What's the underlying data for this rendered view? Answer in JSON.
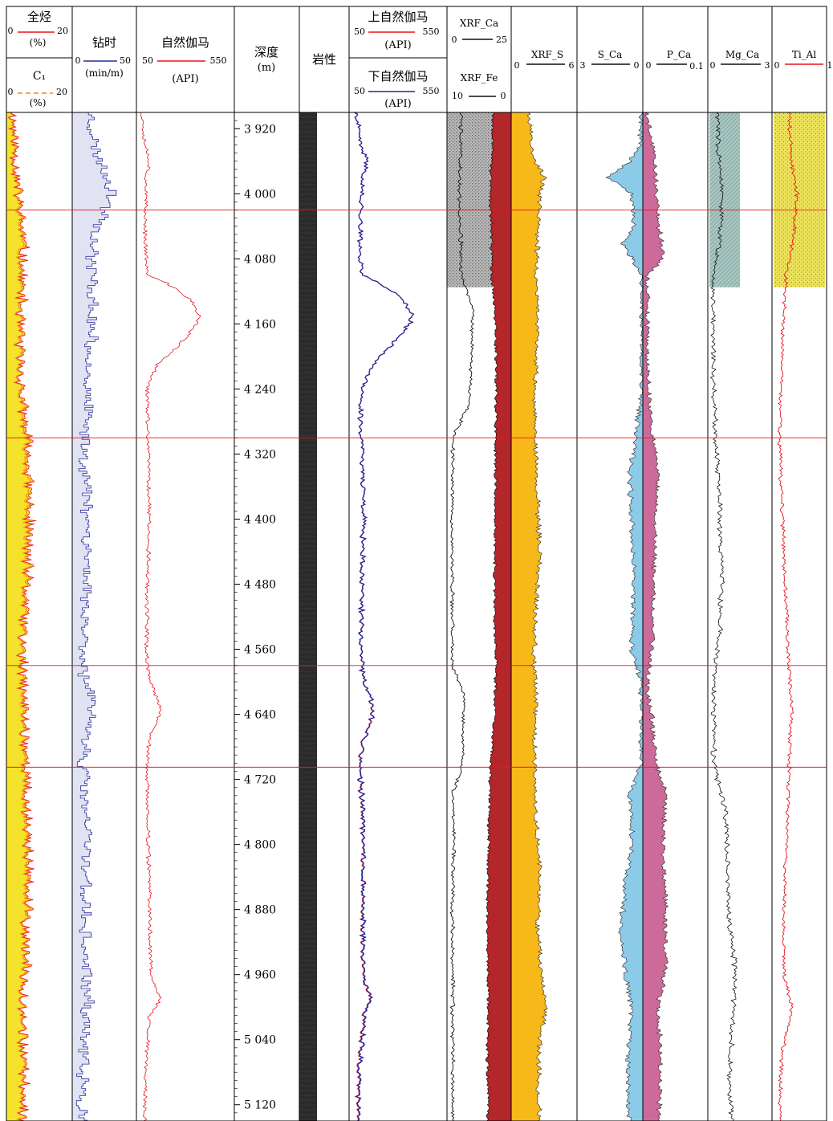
{
  "chart_data": {
    "type": "line",
    "depth": {
      "title": "深度",
      "unit": "(m)",
      "range": [
        3900,
        5140
      ],
      "ticks": [
        3920,
        4000,
        4080,
        4160,
        4240,
        4320,
        4400,
        4480,
        4560,
        4640,
        4720,
        4800,
        4880,
        4960,
        5040,
        5120
      ],
      "tick_labels": [
        "3 920",
        "4 000",
        "4 080",
        "4 160",
        "4 240",
        "4 320",
        "4 400",
        "4 480",
        "4 560",
        "4 640",
        "4 720",
        "4 800",
        "4 880",
        "4 960",
        "5 040",
        "5 120"
      ]
    },
    "boundaries": [
      4020,
      4300,
      4580,
      4705
    ],
    "colors": {
      "gas_fill": "#f5e22a",
      "total_gas": "#e8141c",
      "c1": "#f08a1c",
      "drill": "#2a2f9c",
      "gamma": "#e8141c",
      "gamma_upper": "#e8141c",
      "gamma_lower": "#22249a",
      "xrf_fe_fill": "#b3262a",
      "xrf_ca_line": "#111111",
      "xrf_s_fill": "#f7b91a",
      "s_ca_fill": "#8ccbe8",
      "p_ca_fill": "#cc6b9a",
      "mg_ca_line": "#111111",
      "ti_al_line": "#e8141c",
      "ti_al_fill": "#ede35a",
      "mg_ca_fill": "#a9c7c2",
      "lith_fill": "#2b2b2b",
      "boundary_line": "#e8141c"
    },
    "tracks": [
      {
        "key": "gas",
        "series": [
          {
            "name": "全烃",
            "min": "0",
            "max": "20",
            "unit": "(%)",
            "color": "#e8141c",
            "style": "solid"
          },
          {
            "name": "C₁",
            "min": "0",
            "max": "20",
            "unit": "(%)",
            "color": "#f08a1c",
            "style": "dashed"
          }
        ]
      },
      {
        "key": "drill",
        "series": [
          {
            "name": "钻时",
            "min": "0",
            "max": "50",
            "unit": "(min/m)",
            "color": "#2a2f9c",
            "style": "solid"
          }
        ]
      },
      {
        "key": "gamma",
        "series": [
          {
            "name": "自然伽马",
            "min": "50",
            "max": "550",
            "unit": "(API)",
            "color": "#e8141c",
            "style": "solid"
          }
        ]
      },
      {
        "key": "depth"
      },
      {
        "key": "lith",
        "title": "岩性"
      },
      {
        "key": "gamma2",
        "series": [
          {
            "name": "上自然伽马",
            "min": "50",
            "max": "550",
            "unit": "(API)",
            "color": "#e8141c",
            "style": "solid"
          },
          {
            "name": "下自然伽马",
            "min": "50",
            "max": "550",
            "unit": "(API)",
            "color": "#22249a",
            "style": "solid"
          }
        ]
      },
      {
        "key": "xrf_ca_fe",
        "series": [
          {
            "name": "XRF_Ca",
            "min": "0",
            "max": "25",
            "color": "#111111",
            "style": "solid"
          },
          {
            "name": "XRF_Fe",
            "min": "10",
            "max": "0",
            "color": "#111111",
            "style": "solid"
          }
        ]
      },
      {
        "key": "xrf_s",
        "series": [
          {
            "name": "XRF_S",
            "min": "0",
            "max": "6",
            "color": "#111111",
            "style": "solid"
          }
        ]
      },
      {
        "key": "s_ca",
        "series": [
          {
            "name": "S_Ca",
            "min": "3",
            "max": "0",
            "color": "#111111",
            "style": "solid"
          }
        ]
      },
      {
        "key": "p_ca",
        "series": [
          {
            "name": "P_Ca",
            "min": "0",
            "max": "0.1",
            "color": "#111111",
            "style": "solid"
          }
        ]
      },
      {
        "key": "mg_ca",
        "series": [
          {
            "name": "Mg_Ca",
            "min": "0",
            "max": "3",
            "color": "#111111",
            "style": "solid"
          }
        ]
      },
      {
        "key": "ti_al",
        "series": [
          {
            "name": "Ti_Al",
            "min": "0",
            "max": "1",
            "color": "#e8141c",
            "style": "solid"
          }
        ]
      }
    ],
    "legend_notes": {
      "xrf_s_labels": [
        "0",
        "6"
      ],
      "ti_al_labels": [
        "0",
        "1"
      ]
    },
    "profiles": {
      "gas_total_percent": [
        [
          3900,
          1.6
        ],
        [
          3930,
          2.2
        ],
        [
          3960,
          2.6
        ],
        [
          4000,
          3.4
        ],
        [
          4030,
          4.2
        ],
        [
          4060,
          5.0
        ],
        [
          4100,
          4.6
        ],
        [
          4160,
          4.0
        ],
        [
          4200,
          3.9
        ],
        [
          4240,
          4.3
        ],
        [
          4280,
          5.2
        ],
        [
          4300,
          6.2
        ],
        [
          4340,
          6.6
        ],
        [
          4400,
          6.9
        ],
        [
          4450,
          6.4
        ],
        [
          4500,
          5.8
        ],
        [
          4550,
          4.8
        ],
        [
          4580,
          4.6
        ],
        [
          4620,
          5.2
        ],
        [
          4660,
          5.6
        ],
        [
          4700,
          6.0
        ],
        [
          4740,
          5.8
        ],
        [
          4800,
          6.6
        ],
        [
          4850,
          6.4
        ],
        [
          4900,
          6.0
        ],
        [
          4950,
          5.6
        ],
        [
          5000,
          5.2
        ],
        [
          5050,
          4.9
        ],
        [
          5100,
          5.2
        ],
        [
          5140,
          5.0
        ]
      ],
      "drill_time": [
        [
          3900,
          14
        ],
        [
          3940,
          17
        ],
        [
          3980,
          28
        ],
        [
          4000,
          32
        ],
        [
          4020,
          26
        ],
        [
          4060,
          16
        ],
        [
          4100,
          15
        ],
        [
          4150,
          15
        ],
        [
          4200,
          13
        ],
        [
          4250,
          11
        ],
        [
          4300,
          9
        ],
        [
          4350,
          10
        ],
        [
          4400,
          12
        ],
        [
          4450,
          11
        ],
        [
          4500,
          10
        ],
        [
          4550,
          9
        ],
        [
          4600,
          9
        ],
        [
          4620,
          14
        ],
        [
          4660,
          12
        ],
        [
          4700,
          8
        ],
        [
          4750,
          9
        ],
        [
          4800,
          11
        ],
        [
          4850,
          10
        ],
        [
          4900,
          9
        ],
        [
          4950,
          10
        ],
        [
          5000,
          11
        ],
        [
          5050,
          8
        ],
        [
          5100,
          7
        ],
        [
          5140,
          7
        ]
      ],
      "gamma_api": [
        [
          3900,
          70
        ],
        [
          3940,
          90
        ],
        [
          3960,
          110
        ],
        [
          3980,
          95
        ],
        [
          4000,
          90
        ],
        [
          4040,
          88
        ],
        [
          4080,
          92
        ],
        [
          4100,
          100
        ],
        [
          4110,
          200
        ],
        [
          4130,
          330
        ],
        [
          4150,
          370
        ],
        [
          4160,
          360
        ],
        [
          4175,
          310
        ],
        [
          4190,
          250
        ],
        [
          4210,
          150
        ],
        [
          4240,
          100
        ],
        [
          4280,
          100
        ],
        [
          4320,
          105
        ],
        [
          4400,
          110
        ],
        [
          4480,
          100
        ],
        [
          4560,
          95
        ],
        [
          4600,
          110
        ],
        [
          4630,
          170
        ],
        [
          4650,
          150
        ],
        [
          4670,
          110
        ],
        [
          4700,
          95
        ],
        [
          4800,
          105
        ],
        [
          4880,
          110
        ],
        [
          4960,
          120
        ],
        [
          4990,
          170
        ],
        [
          5010,
          110
        ],
        [
          5080,
          90
        ],
        [
          5140,
          85
        ]
      ],
      "gamma_split_api": [
        [
          3900,
          70
        ],
        [
          3940,
          95
        ],
        [
          3960,
          130
        ],
        [
          3980,
          110
        ],
        [
          4000,
          100
        ],
        [
          4040,
          95
        ],
        [
          4080,
          95
        ],
        [
          4100,
          105
        ],
        [
          4110,
          200
        ],
        [
          4130,
          330
        ],
        [
          4150,
          380
        ],
        [
          4160,
          360
        ],
        [
          4175,
          310
        ],
        [
          4190,
          250
        ],
        [
          4210,
          160
        ],
        [
          4240,
          100
        ],
        [
          4280,
          95
        ],
        [
          4320,
          105
        ],
        [
          4400,
          110
        ],
        [
          4480,
          100
        ],
        [
          4560,
          95
        ],
        [
          4600,
          110
        ],
        [
          4630,
          160
        ],
        [
          4650,
          150
        ],
        [
          4670,
          110
        ],
        [
          4700,
          90
        ],
        [
          4800,
          110
        ],
        [
          4880,
          105
        ],
        [
          4960,
          105
        ],
        [
          4990,
          150
        ],
        [
          5010,
          110
        ],
        [
          5080,
          85
        ],
        [
          5140,
          80
        ]
      ],
      "xrf_fe": [
        [
          3900,
          2.9
        ],
        [
          3960,
          3.1
        ],
        [
          4000,
          3.3
        ],
        [
          4060,
          3.0
        ],
        [
          4100,
          3.0
        ],
        [
          4160,
          2.4
        ],
        [
          4240,
          2.4
        ],
        [
          4300,
          2.4
        ],
        [
          4360,
          2.5
        ],
        [
          4440,
          2.6
        ],
        [
          4520,
          2.6
        ],
        [
          4580,
          2.4
        ],
        [
          4640,
          2.6
        ],
        [
          4700,
          3.2
        ],
        [
          4780,
          3.5
        ],
        [
          4860,
          3.7
        ],
        [
          4920,
          3.8
        ],
        [
          4980,
          3.6
        ],
        [
          5060,
          3.7
        ],
        [
          5140,
          3.6
        ]
      ],
      "xrf_ca": [
        [
          3900,
          5.5
        ],
        [
          3960,
          5.0
        ],
        [
          4000,
          4.5
        ],
        [
          4040,
          5.0
        ],
        [
          4100,
          5.5
        ],
        [
          4140,
          10
        ],
        [
          4200,
          9.5
        ],
        [
          4260,
          8.5
        ],
        [
          4300,
          2
        ],
        [
          4360,
          1.8
        ],
        [
          4440,
          1.8
        ],
        [
          4520,
          1.8
        ],
        [
          4580,
          2.0
        ],
        [
          4620,
          6.5
        ],
        [
          4700,
          6.0
        ],
        [
          4740,
          1.8
        ],
        [
          4800,
          2.5
        ],
        [
          4880,
          1.8
        ],
        [
          4960,
          2.0
        ],
        [
          5040,
          2.0
        ],
        [
          5140,
          2.0
        ]
      ],
      "xrf_s": [
        [
          3900,
          1.6
        ],
        [
          3940,
          1.8
        ],
        [
          3960,
          2.2
        ],
        [
          3980,
          3.0
        ],
        [
          4000,
          2.6
        ],
        [
          4060,
          2.4
        ],
        [
          4100,
          2.2
        ],
        [
          4160,
          2.4
        ],
        [
          4240,
          2.1
        ],
        [
          4300,
          2.2
        ],
        [
          4360,
          2.3
        ],
        [
          4440,
          2.6
        ],
        [
          4520,
          2.2
        ],
        [
          4580,
          2.0
        ],
        [
          4620,
          2.2
        ],
        [
          4700,
          2.0
        ],
        [
          4760,
          2.2
        ],
        [
          4840,
          2.6
        ],
        [
          4900,
          2.4
        ],
        [
          4960,
          2.8
        ],
        [
          5000,
          3.2
        ],
        [
          5040,
          2.6
        ],
        [
          5100,
          2.4
        ],
        [
          5140,
          2.6
        ]
      ],
      "s_ca": [
        [
          3900,
          0.05
        ],
        [
          3940,
          0.1
        ],
        [
          3960,
          0.6
        ],
        [
          3980,
          1.6
        ],
        [
          4000,
          0.5
        ],
        [
          4040,
          0.4
        ],
        [
          4060,
          0.9
        ],
        [
          4080,
          0.5
        ],
        [
          4100,
          0.05
        ],
        [
          4160,
          0.05
        ],
        [
          4240,
          0.05
        ],
        [
          4300,
          0.3
        ],
        [
          4340,
          0.6
        ],
        [
          4400,
          0.5
        ],
        [
          4480,
          0.4
        ],
        [
          4560,
          0.5
        ],
        [
          4600,
          0.05
        ],
        [
          4700,
          0.1
        ],
        [
          4740,
          0.6
        ],
        [
          4800,
          0.5
        ],
        [
          4850,
          0.8
        ],
        [
          4900,
          1.0
        ],
        [
          4960,
          0.8
        ],
        [
          5000,
          0.5
        ],
        [
          5060,
          0.7
        ],
        [
          5100,
          0.7
        ],
        [
          5140,
          0.6
        ]
      ],
      "p_ca": [
        [
          3900,
          0.003
        ],
        [
          3960,
          0.018
        ],
        [
          4000,
          0.02
        ],
        [
          4040,
          0.024
        ],
        [
          4080,
          0.03
        ],
        [
          4100,
          0.005
        ],
        [
          4160,
          0.004
        ],
        [
          4240,
          0.006
        ],
        [
          4300,
          0.014
        ],
        [
          4340,
          0.022
        ],
        [
          4400,
          0.018
        ],
        [
          4480,
          0.015
        ],
        [
          4560,
          0.012
        ],
        [
          4600,
          0.004
        ],
        [
          4700,
          0.02
        ],
        [
          4740,
          0.035
        ],
        [
          4800,
          0.03
        ],
        [
          4880,
          0.035
        ],
        [
          4960,
          0.033
        ],
        [
          5000,
          0.022
        ],
        [
          5060,
          0.025
        ],
        [
          5140,
          0.024
        ]
      ],
      "mg_ca": [
        [
          3900,
          0.4
        ],
        [
          3960,
          0.5
        ],
        [
          4000,
          0.6
        ],
        [
          4060,
          0.5
        ],
        [
          4100,
          0.2
        ],
        [
          4160,
          0.2
        ],
        [
          4240,
          0.2
        ],
        [
          4300,
          0.3
        ],
        [
          4380,
          0.5
        ],
        [
          4460,
          0.6
        ],
        [
          4540,
          0.5
        ],
        [
          4580,
          0.3
        ],
        [
          4640,
          0.2
        ],
        [
          4700,
          0.2
        ],
        [
          4760,
          0.8
        ],
        [
          4840,
          0.9
        ],
        [
          4900,
          1.0
        ],
        [
          4960,
          1.3
        ],
        [
          5020,
          1.1
        ],
        [
          5080,
          1.0
        ],
        [
          5140,
          1.1
        ]
      ],
      "ti_al": [
        [
          3900,
          0.3
        ],
        [
          3960,
          0.35
        ],
        [
          4000,
          0.45
        ],
        [
          4050,
          0.4
        ],
        [
          4100,
          0.25
        ],
        [
          4160,
          0.18
        ],
        [
          4240,
          0.15
        ],
        [
          4300,
          0.12
        ],
        [
          4360,
          0.15
        ],
        [
          4440,
          0.2
        ],
        [
          4520,
          0.25
        ],
        [
          4580,
          0.3
        ],
        [
          4640,
          0.35
        ],
        [
          4700,
          0.3
        ],
        [
          4760,
          0.28
        ],
        [
          4800,
          0.25
        ],
        [
          4880,
          0.2
        ],
        [
          4960,
          0.2
        ],
        [
          5000,
          0.35
        ],
        [
          5060,
          0.15
        ],
        [
          5140,
          0.12
        ]
      ]
    },
    "shaded_zones": {
      "xrf_ca_fe_pattern": [
        3900,
        4115
      ],
      "mg_ca_pattern": [
        3900,
        4115
      ],
      "ti_al_pattern": [
        3900,
        4115
      ]
    }
  }
}
